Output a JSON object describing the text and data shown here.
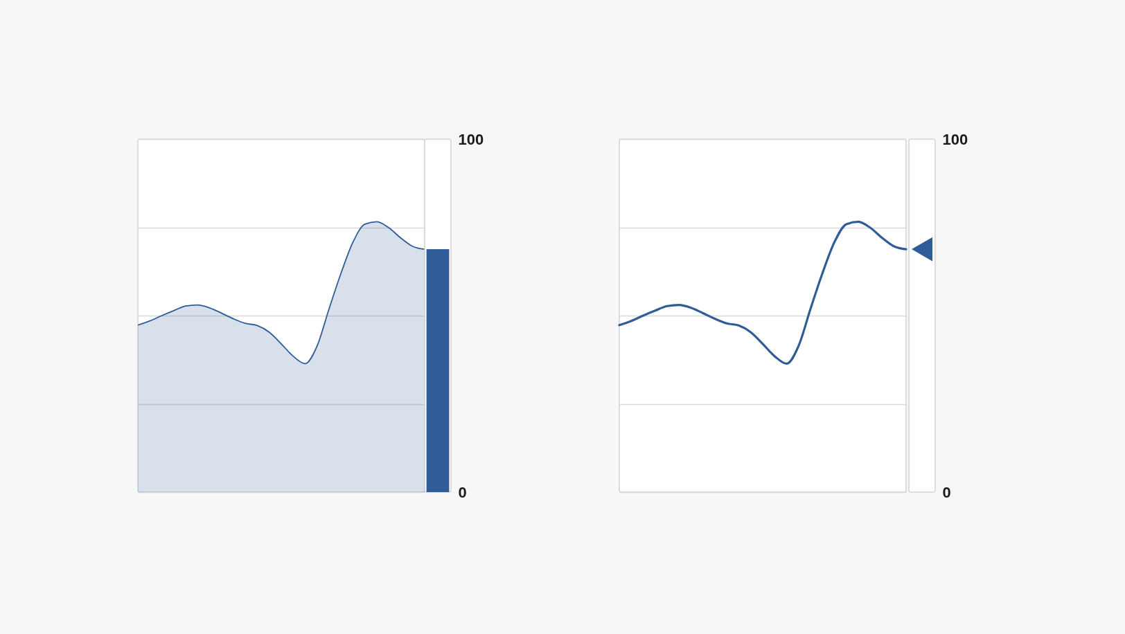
{
  "chart_data": [
    {
      "type": "area",
      "color": "#2f5b98",
      "categories": [
        null,
        null,
        null,
        null,
        null,
        null,
        null,
        null,
        null,
        null,
        null,
        null,
        null,
        null,
        null,
        null,
        null,
        null,
        null,
        null,
        null,
        null,
        null,
        null,
        null
      ],
      "values": [
        47.3,
        48.5,
        50.0,
        51.4,
        52.7,
        53.0,
        52.2,
        50.7,
        49.1,
        47.8,
        47.2,
        45.3,
        42.0,
        38.5,
        36.4,
        41.4,
        51.9,
        62.0,
        70.8,
        75.9,
        76.6,
        74.9,
        72.0,
        69.6,
        68.8
      ],
      "ylim": [
        0,
        100
      ],
      "yticks": [
        0,
        {
          "value": 25,
          "label": null
        },
        {
          "value": 50,
          "label": null
        },
        {
          "value": 75,
          "label": null
        },
        100
      ],
      "grid": "y"
    },
    {
      "type": "bar",
      "color": "#2f5b98",
      "categories": [
        null
      ],
      "values": [
        68.8
      ],
      "ylim": [
        0,
        100
      ],
      "tick_labels": false
    },
    {
      "type": "line",
      "categories": [
        null,
        null,
        null,
        null,
        null,
        null,
        null,
        null,
        null,
        null,
        null,
        null,
        null,
        null,
        null,
        null,
        null,
        null,
        null,
        null,
        null,
        null,
        null,
        null,
        null,
        null
      ],
      "series": [
        {
          "color": "#2f5b98",
          "values": [
            47.3,
            48.5,
            50.0,
            51.4,
            52.7,
            53.0,
            52.2,
            50.7,
            49.1,
            47.8,
            47.2,
            45.3,
            42.0,
            38.5,
            36.4,
            41.4,
            51.9,
            62.0,
            70.8,
            75.9,
            76.6,
            74.9,
            72.0,
            69.6,
            68.8,
            null
          ]
        },
        {
          "type": "scatter",
          "marker": "triangle",
          "color": "#2f5b98",
          "values": [
            null,
            null,
            null,
            null,
            null,
            null,
            null,
            null,
            null,
            null,
            null,
            null,
            null,
            null,
            null,
            null,
            null,
            null,
            null,
            null,
            null,
            null,
            null,
            null,
            null,
            68.8
          ]
        }
      ],
      "ylim": [
        0,
        100
      ],
      "yticks": [
        0,
        {
          "value": 25,
          "label": null
        },
        {
          "value": 50,
          "label": null
        },
        {
          "value": 75,
          "label": null
        },
        100
      ],
      "grid": "y"
    }
  ]
}
